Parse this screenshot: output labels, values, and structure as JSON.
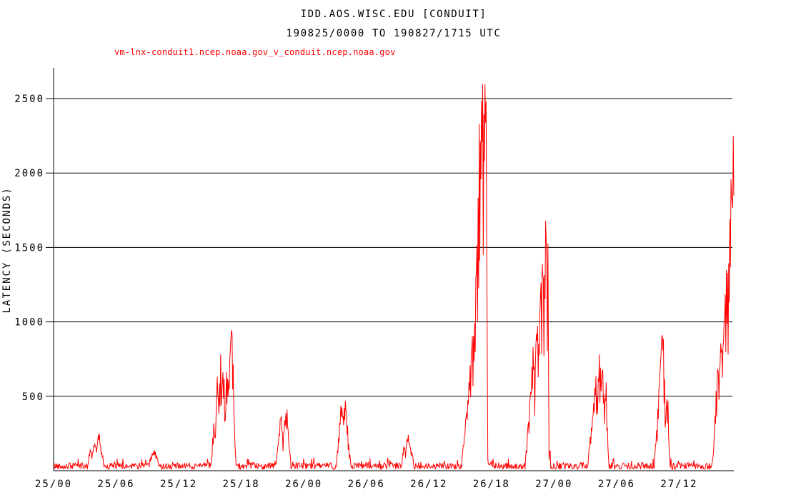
{
  "chart_data": {
    "type": "line",
    "title": "IDD.AOS.WISC.EDU [CONDUIT]",
    "subtitle": "190825/0000 TO 190827/1715 UTC",
    "series_label": "vm-lnx-conduit1.ncep.noaa.gov_v_conduit.ncep.noaa.gov",
    "ylabel": "LATENCY (SECONDS)",
    "x_tick_labels": [
      "25/00",
      "25/06",
      "25/12",
      "25/18",
      "26/00",
      "26/06",
      "26/12",
      "26/18",
      "27/00",
      "27/06",
      "27/12"
    ],
    "x_tick_interval_hours": 6,
    "x_range_hours": [
      0,
      65.25
    ],
    "y_ticks": [
      500,
      1000,
      1500,
      2000,
      2500
    ],
    "y_range_seconds": [
      0,
      2711
    ],
    "grid": "horizontal-only",
    "legend_position": "top-left",
    "line_color": "#ff0000",
    "axis_color": "#000000",
    "background_color": "#ffffff",
    "baseline_noise_seconds": {
      "min": 8,
      "max": 55
    },
    "notable_peaks": [
      {
        "time": "25/04",
        "peak_seconds": 285
      },
      {
        "time": "25/10",
        "peak_seconds": 150
      },
      {
        "time": "25/17",
        "peak_seconds": 1005
      },
      {
        "time": "25/22",
        "peak_seconds": 430
      },
      {
        "time": "26/04",
        "peak_seconds": 505
      },
      {
        "time": "26/10",
        "peak_seconds": 270
      },
      {
        "time": "26/17",
        "peak_seconds": 2710
      },
      {
        "time": "26/23",
        "peak_seconds": 1730
      },
      {
        "time": "27/05",
        "peak_seconds": 800
      },
      {
        "time": "27/10",
        "peak_seconds": 1025
      },
      {
        "time": "27/17",
        "peak_seconds": 2530
      }
    ],
    "envelope_keypoints_hour_seconds": [
      [
        0,
        30
      ],
      [
        3.2,
        30
      ],
      [
        3.5,
        150
      ],
      [
        3.7,
        110
      ],
      [
        3.9,
        190
      ],
      [
        4.15,
        160
      ],
      [
        4.35,
        285
      ],
      [
        4.55,
        140
      ],
      [
        4.75,
        95
      ],
      [
        4.95,
        30
      ],
      [
        9.0,
        30
      ],
      [
        9.3,
        95
      ],
      [
        9.7,
        148
      ],
      [
        10.0,
        80
      ],
      [
        10.3,
        30
      ],
      [
        15.1,
        30
      ],
      [
        15.35,
        350
      ],
      [
        15.5,
        200
      ],
      [
        15.7,
        650
      ],
      [
        15.85,
        430
      ],
      [
        16.0,
        860
      ],
      [
        16.15,
        520
      ],
      [
        16.3,
        800
      ],
      [
        16.45,
        320
      ],
      [
        16.6,
        760
      ],
      [
        16.75,
        560
      ],
      [
        16.95,
        880
      ],
      [
        17.1,
        1005
      ],
      [
        17.25,
        700
      ],
      [
        17.35,
        300
      ],
      [
        17.5,
        30
      ],
      [
        21.3,
        30
      ],
      [
        21.6,
        240
      ],
      [
        21.8,
        420
      ],
      [
        22.0,
        210
      ],
      [
        22.2,
        380
      ],
      [
        22.4,
        430
      ],
      [
        22.6,
        150
      ],
      [
        22.85,
        30
      ],
      [
        27.1,
        30
      ],
      [
        27.4,
        300
      ],
      [
        27.6,
        500
      ],
      [
        27.8,
        350
      ],
      [
        27.95,
        505
      ],
      [
        28.15,
        380
      ],
      [
        28.35,
        150
      ],
      [
        28.6,
        30
      ],
      [
        33.3,
        30
      ],
      [
        33.6,
        180
      ],
      [
        33.8,
        140
      ],
      [
        34.0,
        270
      ],
      [
        34.2,
        160
      ],
      [
        34.4,
        120
      ],
      [
        34.65,
        30
      ],
      [
        39.1,
        30
      ],
      [
        39.4,
        250
      ],
      [
        39.7,
        480
      ],
      [
        40.0,
        760
      ],
      [
        40.2,
        1000
      ],
      [
        40.35,
        900
      ],
      [
        40.55,
        1450
      ],
      [
        40.7,
        1800
      ],
      [
        40.85,
        2450
      ],
      [
        40.95,
        2250
      ],
      [
        41.05,
        2560
      ],
      [
        41.15,
        2711
      ],
      [
        41.25,
        2500
      ],
      [
        41.35,
        2650
      ],
      [
        41.45,
        2480
      ],
      [
        41.55,
        2520
      ],
      [
        41.62,
        90
      ],
      [
        41.75,
        30
      ],
      [
        45.2,
        30
      ],
      [
        45.5,
        300
      ],
      [
        45.8,
        600
      ],
      [
        46.0,
        870
      ],
      [
        46.15,
        620
      ],
      [
        46.35,
        1050
      ],
      [
        46.55,
        900
      ],
      [
        46.7,
        1280
      ],
      [
        46.9,
        1500
      ],
      [
        47.05,
        1250
      ],
      [
        47.2,
        1730
      ],
      [
        47.35,
        1400
      ],
      [
        47.45,
        1600
      ],
      [
        47.52,
        70
      ],
      [
        47.6,
        200
      ],
      [
        47.7,
        30
      ],
      [
        51.2,
        30
      ],
      [
        51.5,
        250
      ],
      [
        51.8,
        450
      ],
      [
        52.0,
        700
      ],
      [
        52.15,
        500
      ],
      [
        52.35,
        800
      ],
      [
        52.55,
        620
      ],
      [
        52.7,
        730
      ],
      [
        52.85,
        400
      ],
      [
        53.0,
        640
      ],
      [
        53.2,
        100
      ],
      [
        53.35,
        30
      ],
      [
        57.6,
        30
      ],
      [
        57.9,
        350
      ],
      [
        58.1,
        600
      ],
      [
        58.25,
        800
      ],
      [
        58.45,
        1025
      ],
      [
        58.6,
        700
      ],
      [
        58.7,
        300
      ],
      [
        58.8,
        520
      ],
      [
        58.95,
        480
      ],
      [
        59.05,
        150
      ],
      [
        59.2,
        30
      ],
      [
        63.1,
        30
      ],
      [
        63.3,
        120
      ],
      [
        63.5,
        500
      ],
      [
        63.7,
        750
      ],
      [
        63.85,
        620
      ],
      [
        64.0,
        900
      ],
      [
        64.15,
        800
      ],
      [
        64.3,
        1000
      ],
      [
        64.45,
        1250
      ],
      [
        64.6,
        1500
      ],
      [
        64.7,
        1300
      ],
      [
        64.8,
        1550
      ],
      [
        64.9,
        1800
      ],
      [
        65.0,
        2050
      ],
      [
        65.1,
        1900
      ],
      [
        65.18,
        2300
      ],
      [
        65.25,
        2530
      ]
    ]
  }
}
